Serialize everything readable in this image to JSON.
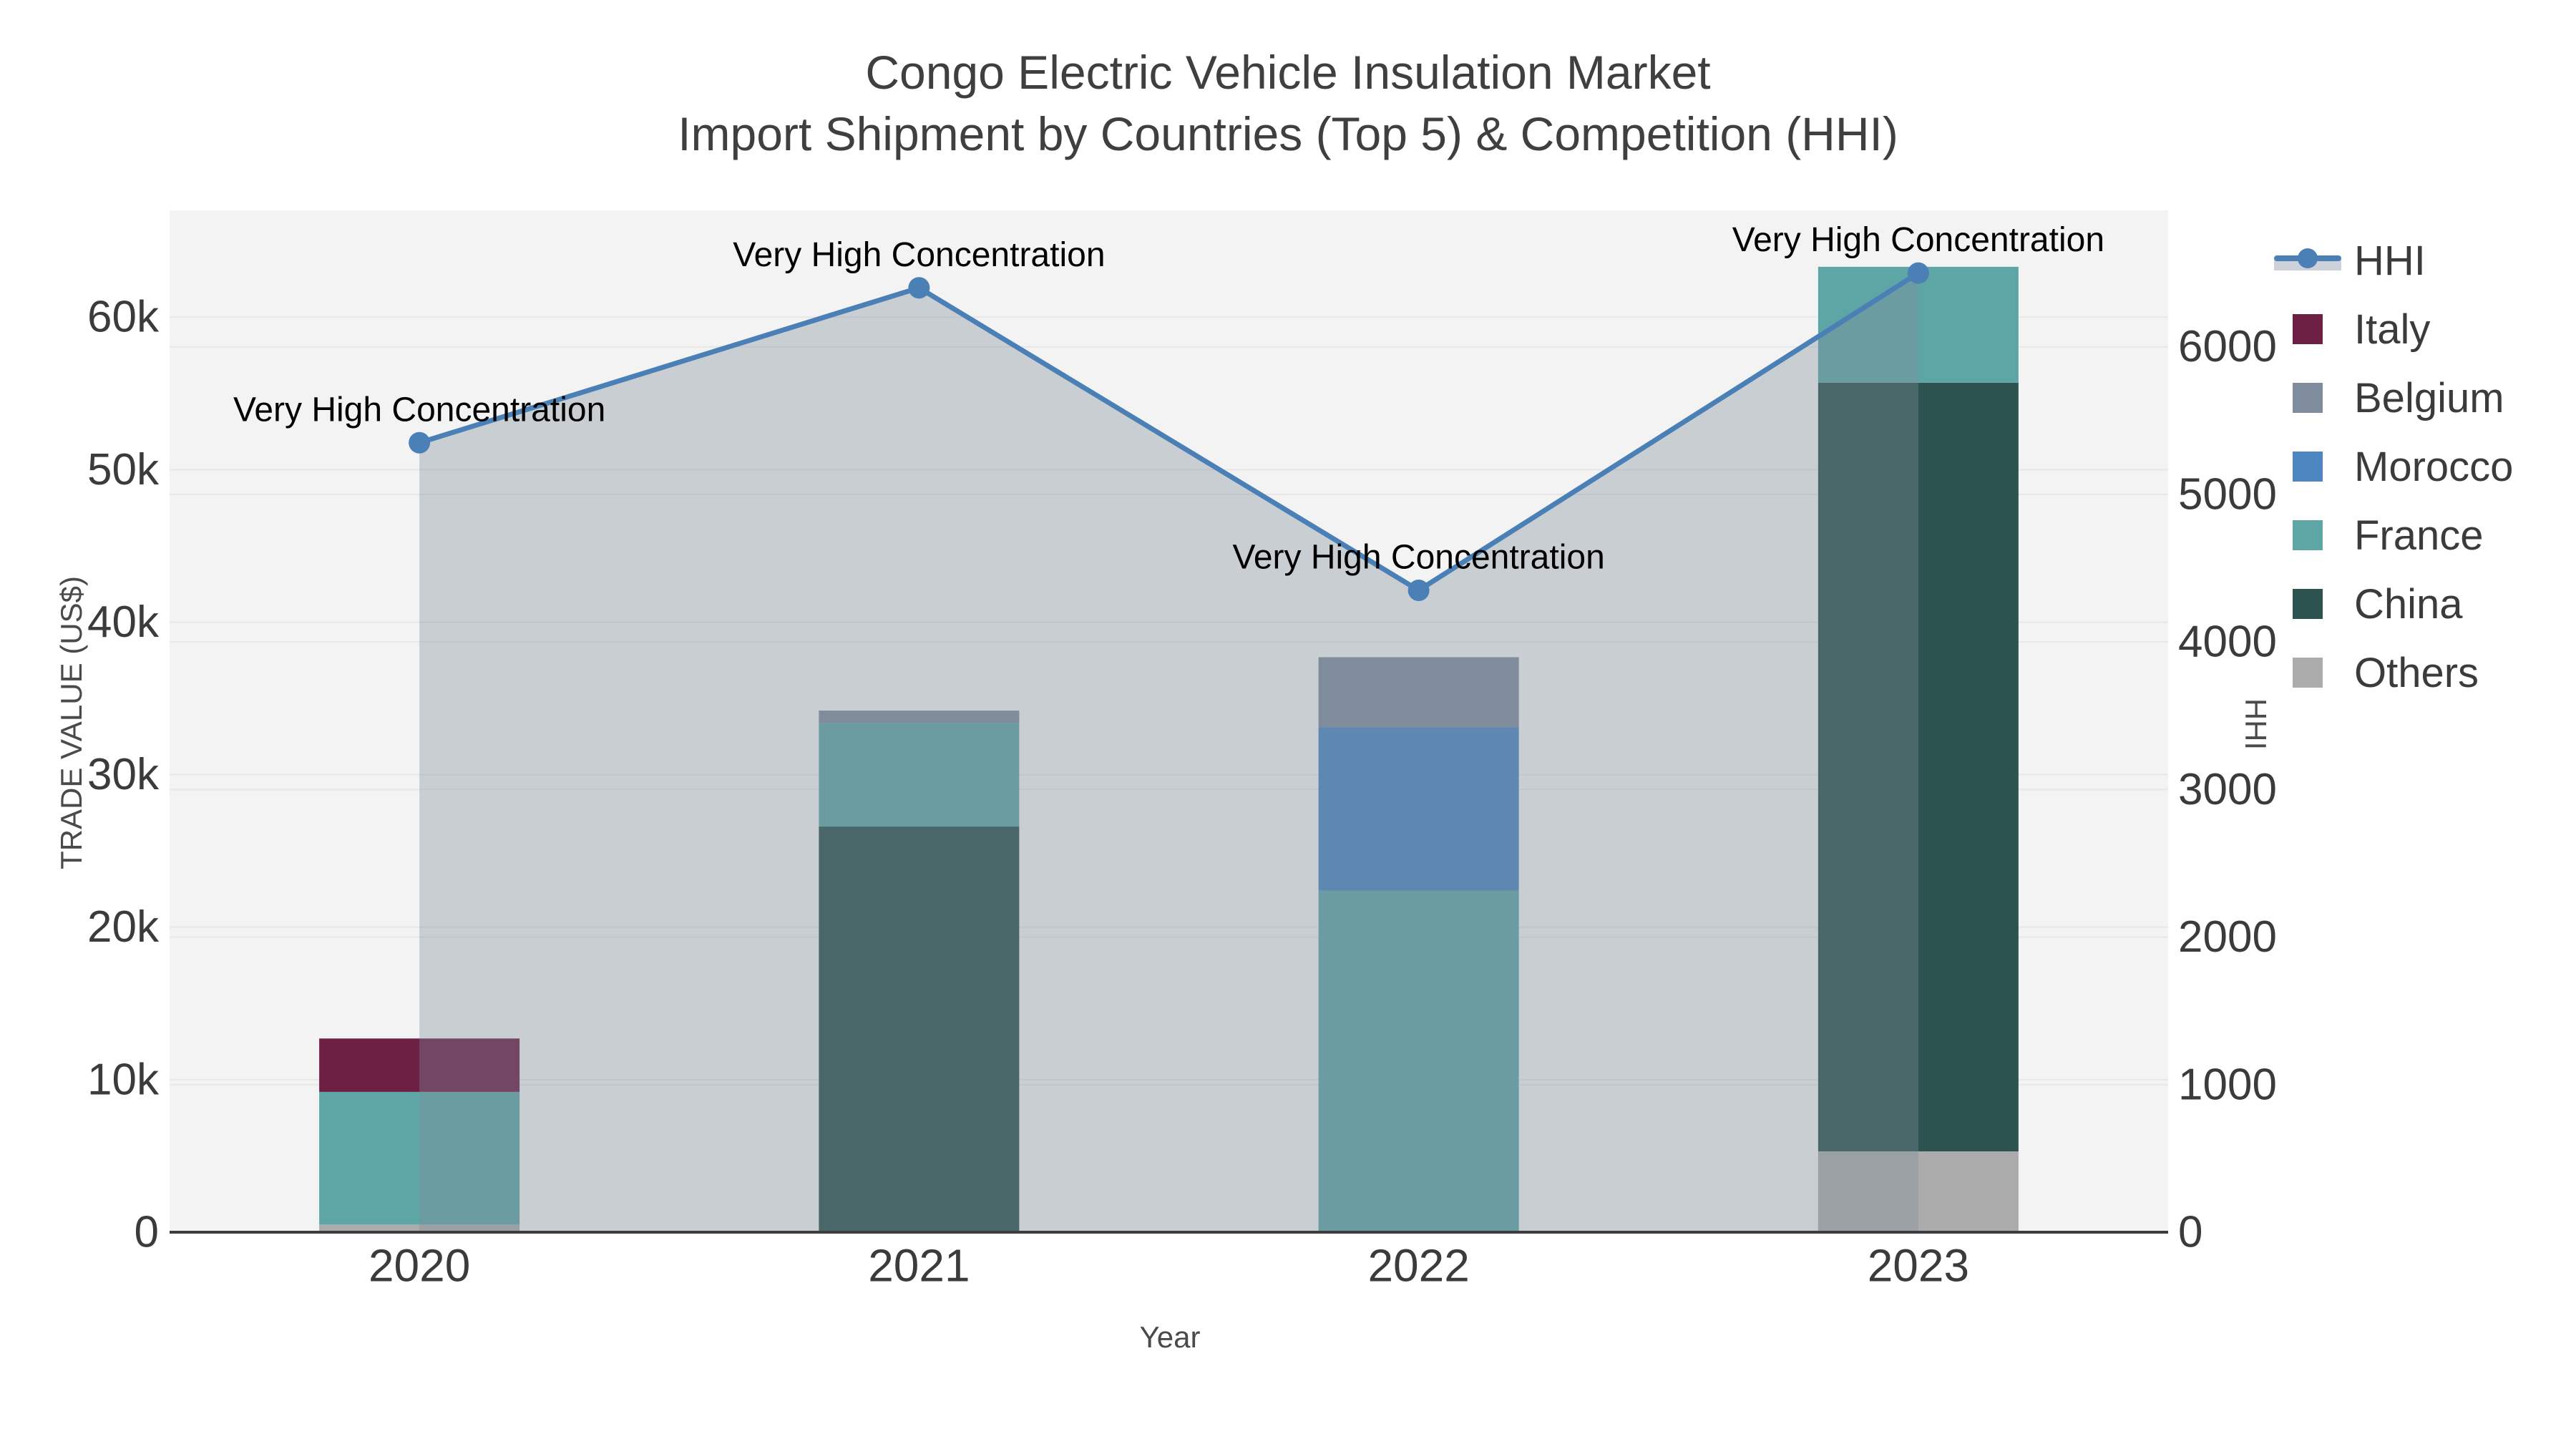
{
  "title": {
    "line1": "Congo Electric Vehicle Insulation Market",
    "line2": "Import Shipment by Countries (Top 5) & Competition (HHI)"
  },
  "axes": {
    "x": {
      "title": "Year",
      "categories": [
        "2020",
        "2021",
        "2022",
        "2023"
      ]
    },
    "y_left": {
      "title": "TRADE VALUE (US$)",
      "ticks": [
        0,
        10000,
        20000,
        30000,
        40000,
        50000,
        60000
      ],
      "tick_labels": [
        "0",
        "10k",
        "20k",
        "30k",
        "40k",
        "50k",
        "60k"
      ],
      "max": 67000
    },
    "y_right": {
      "title": "HHI",
      "ticks": [
        0,
        1000,
        2000,
        3000,
        4000,
        5000,
        6000
      ],
      "tick_labels": [
        "0",
        "1000",
        "2000",
        "3000",
        "4000",
        "5000",
        "6000"
      ],
      "max": 6925
    }
  },
  "chart_data": {
    "type": "bar+line",
    "title": "Congo Electric Vehicle Insulation Market — Import Shipment by Countries (Top 5) & Competition (HHI)",
    "categories": [
      "2020",
      "2021",
      "2022",
      "2023"
    ],
    "xlabel": "Year",
    "ylabel_left": "TRADE VALUE (US$)",
    "ylabel_right": "HHI",
    "ylim_left": [
      0,
      67000
    ],
    "ylim_right": [
      0,
      6925
    ],
    "grid": true,
    "legend_position": "right",
    "bar_stack_order_bottom_to_top": [
      "Others",
      "China",
      "France",
      "Morocco",
      "Belgium",
      "Italy"
    ],
    "series": [
      {
        "name": "Others",
        "type": "bar",
        "color": "#ababab",
        "values": [
          500,
          0,
          0,
          5300
        ]
      },
      {
        "name": "China",
        "type": "bar",
        "color": "#2c534f",
        "values": [
          0,
          26600,
          0,
          50400
        ]
      },
      {
        "name": "France",
        "type": "bar",
        "color": "#5ea5a5",
        "values": [
          8700,
          6800,
          22400,
          7600
        ]
      },
      {
        "name": "Morocco",
        "type": "bar",
        "color": "#4c85bf",
        "values": [
          0,
          0,
          10700,
          0
        ]
      },
      {
        "name": "Belgium",
        "type": "bar",
        "color": "#7e8c9d",
        "values": [
          0,
          800,
          4600,
          0
        ]
      },
      {
        "name": "Italy",
        "type": "bar",
        "color": "#6d1f44",
        "values": [
          3500,
          0,
          0,
          0
        ]
      }
    ],
    "bar_totals": [
      12700,
      34200,
      37700,
      63300
    ],
    "line_series": {
      "name": "HHI",
      "type": "line",
      "axis": "right",
      "color": "#4b80b7",
      "fill_color": "rgba(127,140,155,0.36)",
      "values": [
        5350,
        6400,
        4350,
        6500
      ]
    },
    "annotations": [
      {
        "text": "Very High Concentration",
        "category": "2020",
        "value": 5350
      },
      {
        "text": "Very High Concentration",
        "category": "2021",
        "value": 6400
      },
      {
        "text": "Very High Concentration",
        "category": "2022",
        "value": 4350
      },
      {
        "text": "Very High Concentration",
        "category": "2023",
        "value": 6500
      }
    ],
    "legend_items": [
      {
        "label": "HHI",
        "type": "line",
        "color": "#4b80b7"
      },
      {
        "label": "Italy",
        "type": "swatch",
        "color": "#6d1f44"
      },
      {
        "label": "Belgium",
        "type": "swatch",
        "color": "#7e8c9d"
      },
      {
        "label": "Morocco",
        "type": "swatch",
        "color": "#4c85bf"
      },
      {
        "label": "France",
        "type": "swatch",
        "color": "#5ea5a5"
      },
      {
        "label": "China",
        "type": "swatch",
        "color": "#2c534f"
      },
      {
        "label": "Others",
        "type": "swatch",
        "color": "#ababab"
      }
    ]
  },
  "style_colors": {
    "plot_bg": "#f3f3f3",
    "gridline": "#e7e7e7",
    "axis_line": "#3d3d3d",
    "tick_text": "#3b3b3b",
    "annotation_text": "#000000"
  }
}
